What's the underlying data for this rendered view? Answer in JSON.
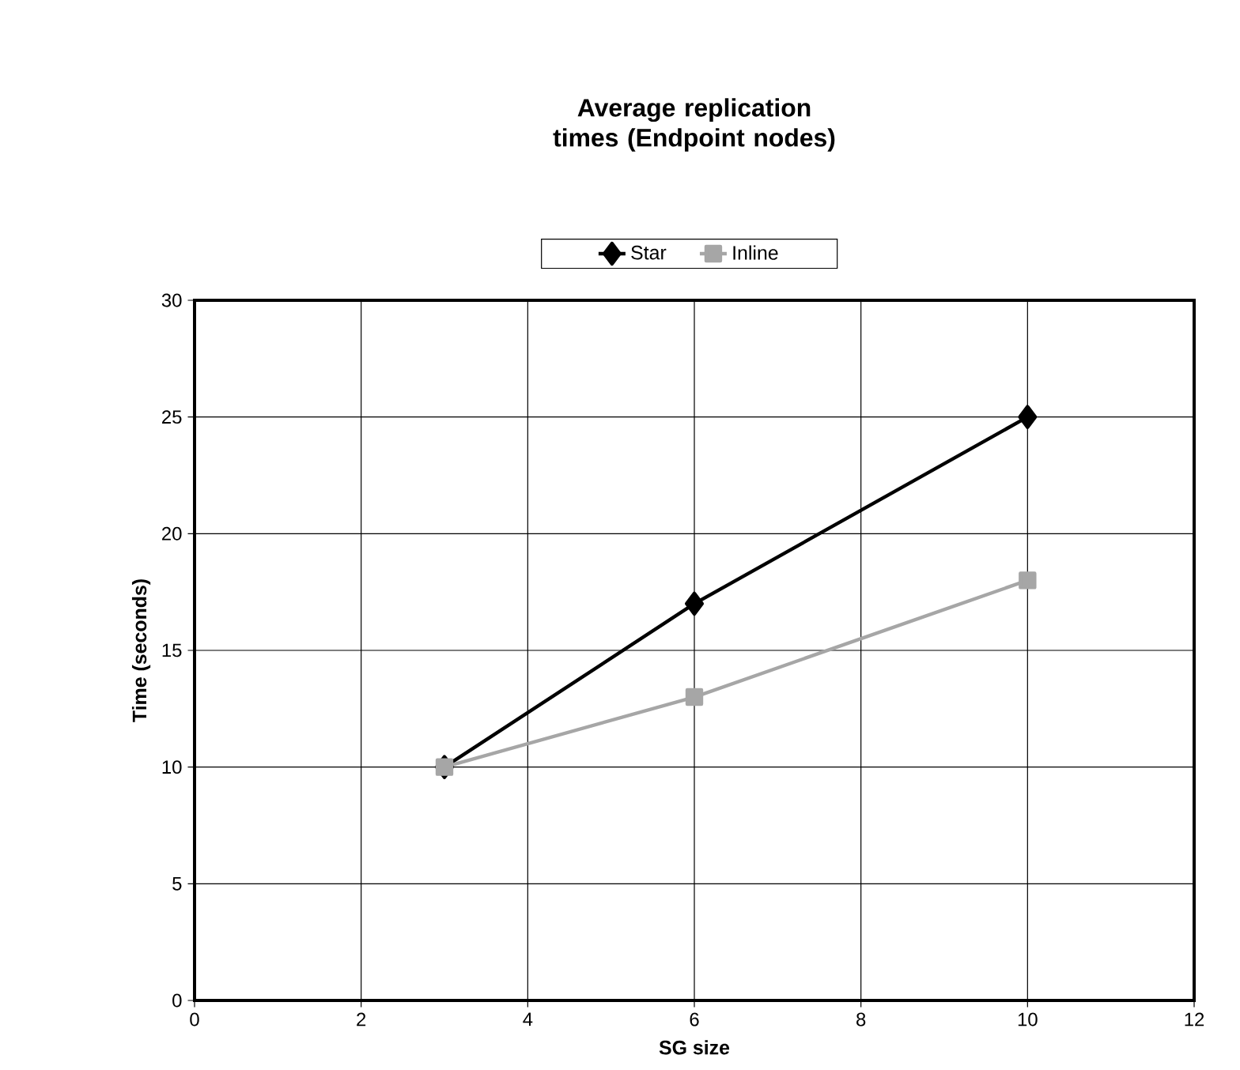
{
  "chart_data": {
    "type": "line",
    "title": "Average replication times (Endpoint nodes)",
    "xlabel": "SG size",
    "ylabel": "Time (seconds)",
    "xlim": [
      0,
      12
    ],
    "xticks": [
      0,
      2,
      4,
      6,
      8,
      10,
      12
    ],
    "ylim": [
      0,
      30
    ],
    "yticks": [
      0,
      5,
      10,
      15,
      20,
      25,
      30
    ],
    "grid": true,
    "legend": "top",
    "line_style": "solid",
    "series": [
      {
        "name": "Star",
        "color": "#000000",
        "marker": "diamond",
        "x": [
          3,
          6,
          10
        ],
        "values": [
          10,
          17,
          25
        ]
      },
      {
        "name": "Inline",
        "color": "#a6a6a6",
        "marker": "square",
        "x": [
          3,
          6,
          10
        ],
        "values": [
          10,
          13,
          18
        ]
      }
    ]
  }
}
